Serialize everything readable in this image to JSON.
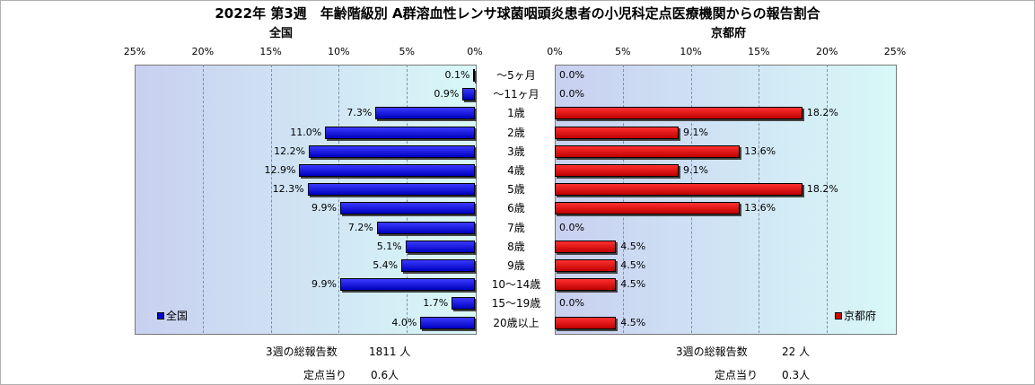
{
  "title": "2022年 第3週　年齢階級別 A群溶血性レンサ球菌咽頭炎患者の小児科定点医療機関からの報告割合",
  "colors": {
    "national": "#0000e0",
    "kyoto": "#e00000"
  },
  "chart_data": {
    "type": "bar",
    "orientation": "horizontal",
    "layout": "back-to-back",
    "categories": [
      "～5ヶ月",
      "～11ヶ月",
      "1歳",
      "2歳",
      "3歳",
      "4歳",
      "5歳",
      "6歳",
      "7歳",
      "8歳",
      "9歳",
      "10～14歳",
      "15～19歳",
      "20歳以上"
    ],
    "xlim": [
      0,
      25
    ],
    "ticks": [
      "0%",
      "5%",
      "10%",
      "15%",
      "20%",
      "25%"
    ],
    "grid": true,
    "series": [
      {
        "name": "全国",
        "panel_title": "全国",
        "legend_position": "bottom-left",
        "color": "#0000e0",
        "values": [
          0.1,
          0.9,
          7.3,
          11.0,
          12.2,
          12.9,
          12.3,
          9.9,
          7.2,
          5.1,
          5.4,
          9.9,
          1.7,
          4.0
        ],
        "labels": [
          "0.1%",
          "0.9%",
          "7.3%",
          "11.0%",
          "12.2%",
          "12.9%",
          "12.3%",
          "9.9%",
          "7.2%",
          "5.1%",
          "5.4%",
          "9.9%",
          "1.7%",
          "4.0%"
        ]
      },
      {
        "name": "京都府",
        "panel_title": "京都府",
        "legend_position": "bottom-right",
        "color": "#e00000",
        "values": [
          0,
          0,
          18.2,
          9.1,
          13.6,
          9.1,
          18.2,
          13.6,
          0,
          4.5,
          4.5,
          4.5,
          0,
          4.5
        ],
        "labels": [
          "0.0%",
          "0.0%",
          "18.2%",
          "9.1%",
          "13.6%",
          "9.1%",
          "18.2%",
          "13.6%",
          "0.0%",
          "4.5%",
          "4.5%",
          "4.5%",
          "0.0%",
          "4.5%"
        ]
      }
    ]
  },
  "footer": {
    "national": {
      "total_label": "3週の総報告数",
      "total_value": "1811 人",
      "perpoint_label": "定点当り",
      "perpoint_value": "0.6人"
    },
    "kyoto": {
      "total_label": "3週の総報告数",
      "total_value": "22 人",
      "perpoint_label": "定点当り",
      "perpoint_value": "0.3人"
    }
  }
}
